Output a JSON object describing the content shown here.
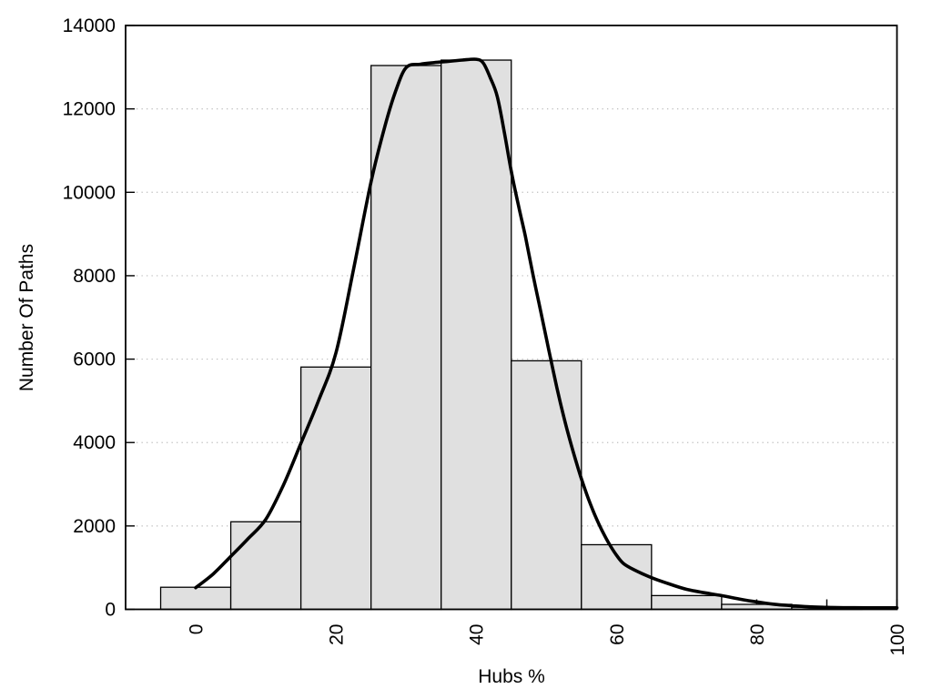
{
  "chart_data": {
    "type": "bar",
    "subtype": "histogram-with-density-curve",
    "title": "",
    "xlabel": "Hubs %",
    "ylabel": "Number Of Paths",
    "xlim": [
      -10,
      100
    ],
    "ylim": [
      0,
      14000
    ],
    "grid": "horizontal dotted lines at labeled y ticks",
    "legend": "none",
    "x_ticks_labeled": [
      0,
      20,
      40,
      60,
      80,
      100
    ],
    "x_ticks_unlabeled": [
      10,
      30,
      50,
      70,
      90
    ],
    "x_tick_label_rotation_deg": -90,
    "y_ticks": [
      0,
      2000,
      4000,
      6000,
      8000,
      10000,
      12000,
      14000
    ],
    "bin_width": 10,
    "categories": [
      0,
      10,
      20,
      30,
      40,
      50,
      60,
      70,
      80,
      90
    ],
    "values": [
      530,
      2100,
      5810,
      13040,
      13170,
      5960,
      1550,
      330,
      120,
      50
    ],
    "series": [
      {
        "name": "histogram-bars",
        "bin_centers": [
          0,
          10,
          20,
          30,
          40,
          50,
          60,
          70,
          80,
          90
        ],
        "values": [
          530,
          2100,
          5810,
          13040,
          13170,
          5960,
          1550,
          330,
          120,
          50
        ]
      },
      {
        "name": "density-curve",
        "points": [
          [
            0,
            520
          ],
          [
            2.5,
            850
          ],
          [
            5,
            1270
          ],
          [
            7.5,
            1700
          ],
          [
            10,
            2160
          ],
          [
            12.5,
            2980
          ],
          [
            15,
            3980
          ],
          [
            17.5,
            5000
          ],
          [
            20,
            6150
          ],
          [
            22.5,
            8150
          ],
          [
            25,
            10250
          ],
          [
            27,
            11600
          ],
          [
            28.5,
            12420
          ],
          [
            30,
            12990
          ],
          [
            32,
            13070
          ],
          [
            34,
            13110
          ],
          [
            36,
            13140
          ],
          [
            38,
            13170
          ],
          [
            40,
            13190
          ],
          [
            41,
            13100
          ],
          [
            42,
            12750
          ],
          [
            43,
            12300
          ],
          [
            44,
            11450
          ],
          [
            45,
            10500
          ],
          [
            46,
            9700
          ],
          [
            47,
            8950
          ],
          [
            48,
            8100
          ],
          [
            49,
            7300
          ],
          [
            50,
            6500
          ],
          [
            51,
            5700
          ],
          [
            52,
            4950
          ],
          [
            53,
            4280
          ],
          [
            54,
            3680
          ],
          [
            55,
            3130
          ],
          [
            56,
            2650
          ],
          [
            57,
            2230
          ],
          [
            58,
            1870
          ],
          [
            59,
            1560
          ],
          [
            60,
            1300
          ],
          [
            61,
            1100
          ],
          [
            62.5,
            950
          ],
          [
            65,
            760
          ],
          [
            67.5,
            610
          ],
          [
            70,
            480
          ],
          [
            72.5,
            400
          ],
          [
            75,
            330
          ],
          [
            77.5,
            248
          ],
          [
            80,
            178
          ],
          [
            82.5,
            122
          ],
          [
            85,
            88
          ],
          [
            87.5,
            62
          ],
          [
            90,
            48
          ],
          [
            93,
            40
          ],
          [
            96,
            38
          ],
          [
            100,
            38
          ]
        ]
      }
    ],
    "colors": {
      "background": "#ffffff",
      "bar_fill": "#e0e0e0",
      "bar_edge": "#000000",
      "curve": "#000000",
      "grid": "#bcbcbc",
      "axis": "#000000",
      "text": "#000000"
    }
  }
}
